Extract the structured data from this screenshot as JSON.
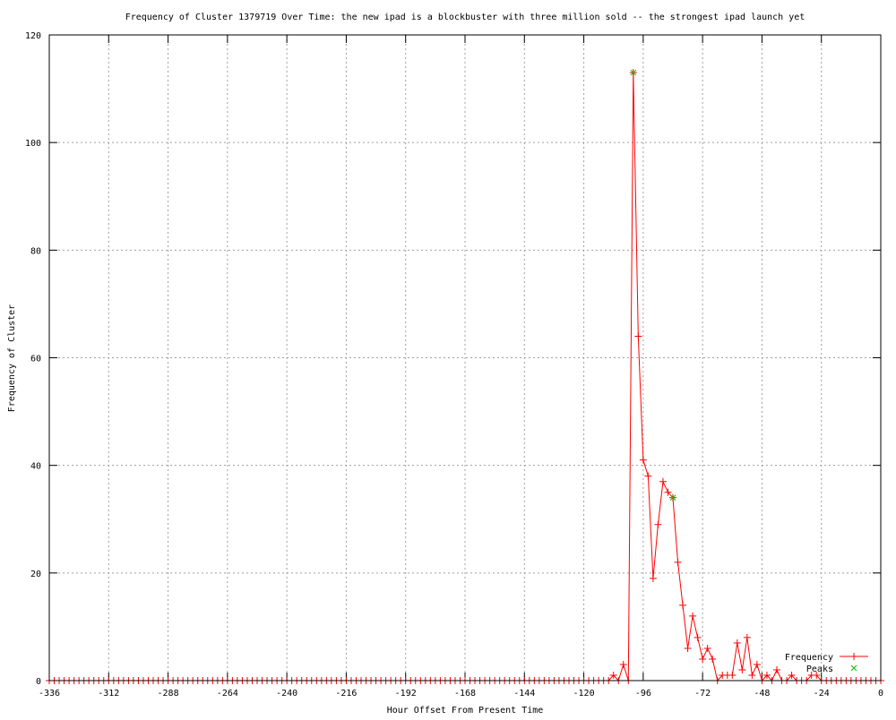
{
  "chart_data": {
    "type": "line",
    "title": "Frequency of Cluster 1379719 Over Time: the new ipad is a blockbuster with three million sold -- the strongest ipad launch yet",
    "xlabel": "Hour Offset From Present Time",
    "ylabel": "Frequency of Cluster",
    "xlim": [
      -336,
      0
    ],
    "ylim": [
      0,
      120
    ],
    "xticks": [
      -336,
      -312,
      -288,
      -264,
      -240,
      -216,
      -192,
      -168,
      -144,
      -120,
      -96,
      -72,
      -48,
      -24,
      0
    ],
    "yticks": [
      0,
      20,
      40,
      60,
      80,
      100,
      120
    ],
    "grid": true,
    "legend_position": "bottom-right",
    "x_step": 2,
    "nonzero_points": {
      "-108": 1,
      "-104": 3,
      "-100": 113,
      "-98": 64,
      "-96": 41,
      "-94": 38,
      "-92": 19,
      "-90": 29,
      "-88": 37,
      "-86": 35,
      "-84": 34,
      "-82": 22,
      "-80": 14,
      "-78": 6,
      "-76": 12,
      "-74": 8,
      "-72": 4,
      "-70": 6,
      "-68": 4,
      "-64": 1,
      "-62": 1,
      "-60": 1,
      "-58": 7,
      "-56": 2,
      "-54": 8,
      "-52": 1,
      "-50": 3,
      "-46": 1,
      "-42": 2,
      "-36": 1,
      "-28": 1,
      "-26": 1
    },
    "series": [
      {
        "name": "Frequency",
        "color": "#ff0000",
        "marker": "plus",
        "style": "linespoints"
      },
      {
        "name": "Peaks",
        "color": "#00c000",
        "marker": "cross",
        "style": "points",
        "points": [
          [
            -100,
            113
          ],
          [
            -84,
            34
          ]
        ]
      }
    ]
  }
}
